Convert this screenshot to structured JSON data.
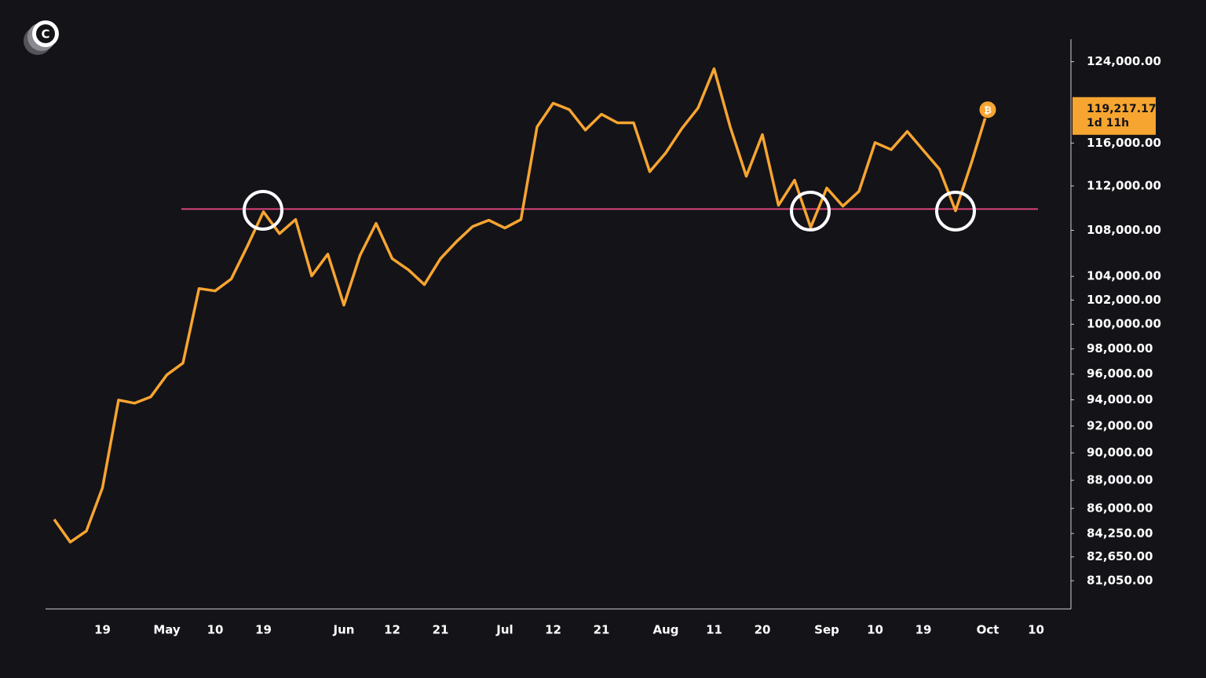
{
  "chart_data": {
    "type": "line",
    "logo": "C",
    "coin_symbol": "₿",
    "categories": [
      null,
      null,
      null,
      "19",
      null,
      null,
      null,
      "May",
      null,
      null,
      "10",
      null,
      null,
      "19",
      null,
      null,
      null,
      null,
      "Jun",
      null,
      null,
      "12",
      null,
      null,
      "21",
      null,
      null,
      null,
      "Jul",
      null,
      null,
      "12",
      null,
      null,
      "21",
      null,
      null,
      null,
      "Aug",
      null,
      null,
      "11",
      null,
      null,
      "20",
      null,
      null,
      null,
      "Sep",
      null,
      null,
      "10",
      null,
      null,
      "19",
      null,
      null,
      null,
      "Oct",
      null,
      null,
      "10"
    ],
    "series": [
      {
        "color": "#f7a531",
        "values": [
          85230,
          83660,
          84420,
          87460,
          93980,
          93740,
          94230,
          95940,
          96870,
          102970,
          102770,
          103780,
          106600,
          109660,
          107710,
          108960,
          104040,
          105920,
          101580,
          105800,
          108610,
          105520,
          104570,
          103300,
          105520,
          107010,
          108340,
          108900,
          108200,
          108960,
          117550,
          119850,
          119230,
          117250,
          118770,
          117940,
          117940,
          113320,
          115080,
          117400,
          119380,
          123280,
          117550,
          112890,
          116810,
          110240,
          112530,
          108260,
          111810,
          110160,
          111510,
          116050,
          115380,
          117110,
          115310,
          113550,
          109740,
          114200,
          119217.17,
          null,
          null,
          null
        ]
      }
    ],
    "log_scale": true,
    "ylim": [
      79200,
      126300
    ],
    "yticks": [
      {
        "value": 124000,
        "label": "124,000.00"
      },
      {
        "value": 116000,
        "label": "116,000.00"
      },
      {
        "value": 112000,
        "label": "112,000.00"
      },
      {
        "value": 108000,
        "label": "108,000.00"
      },
      {
        "value": 104000,
        "label": "104,000.00"
      },
      {
        "value": 102000,
        "label": "102,000.00"
      },
      {
        "value": 100000,
        "label": "100,000.00"
      },
      {
        "value": 98000,
        "label": "98,000.00"
      },
      {
        "value": 96000,
        "label": "96,000.00"
      },
      {
        "value": 94000,
        "label": "94,000.00"
      },
      {
        "value": 92000,
        "label": "92,000.00"
      },
      {
        "value": 90000,
        "label": "90,000.00"
      },
      {
        "value": 88000,
        "label": "88,000.00"
      },
      {
        "value": 86000,
        "label": "86,000.00"
      },
      {
        "value": 84250,
        "label": "84,250.00"
      },
      {
        "value": 82650,
        "label": "82,650.00"
      },
      {
        "value": 81050,
        "label": "81,050.00"
      }
    ],
    "level": {
      "value": 109900,
      "color": "#d8457c"
    },
    "current_price": {
      "value": 119217.17,
      "label": "119,217.17"
    },
    "countdown": "1d 11h",
    "grid": false
  }
}
